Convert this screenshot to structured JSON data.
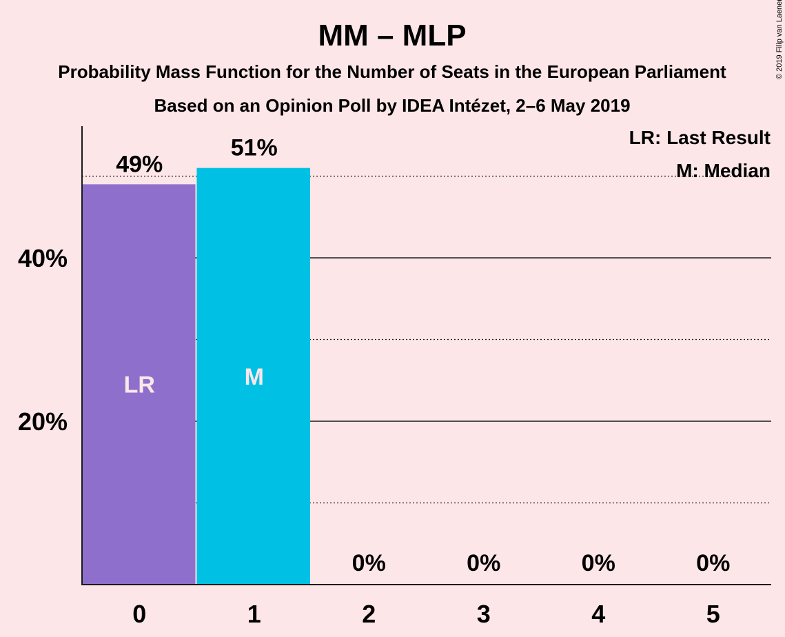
{
  "title": "MM – MLP",
  "subtitle1": "Probability Mass Function for the Number of Seats in the European Parliament",
  "subtitle2": "Based on an Opinion Poll by IDEA Intézet, 2–6 May 2019",
  "copyright": "© 2019 Filip van Laenen",
  "legend": {
    "last_result": "LR: Last Result",
    "median": "M: Median"
  },
  "chart_data": {
    "type": "bar",
    "categories": [
      "0",
      "1",
      "2",
      "3",
      "4",
      "5"
    ],
    "values": [
      49,
      51,
      0,
      0,
      0,
      0
    ],
    "value_labels": [
      "49%",
      "51%",
      "0%",
      "0%",
      "0%",
      "0%"
    ],
    "bar_colors": [
      "#8e70cc",
      "#00c0e4",
      "#00c0e4",
      "#00c0e4",
      "#00c0e4",
      "#00c0e4"
    ],
    "bar_markers": {
      "0": "LR",
      "1": "M"
    },
    "yticks": [
      20,
      40
    ],
    "ytick_labels": [
      "20%",
      "40%"
    ],
    "ylim": [
      0,
      56
    ],
    "gridlines_solid": [
      20,
      40
    ],
    "gridlines_dotted": [
      10,
      30,
      50
    ],
    "xlabel": "",
    "ylabel": ""
  }
}
